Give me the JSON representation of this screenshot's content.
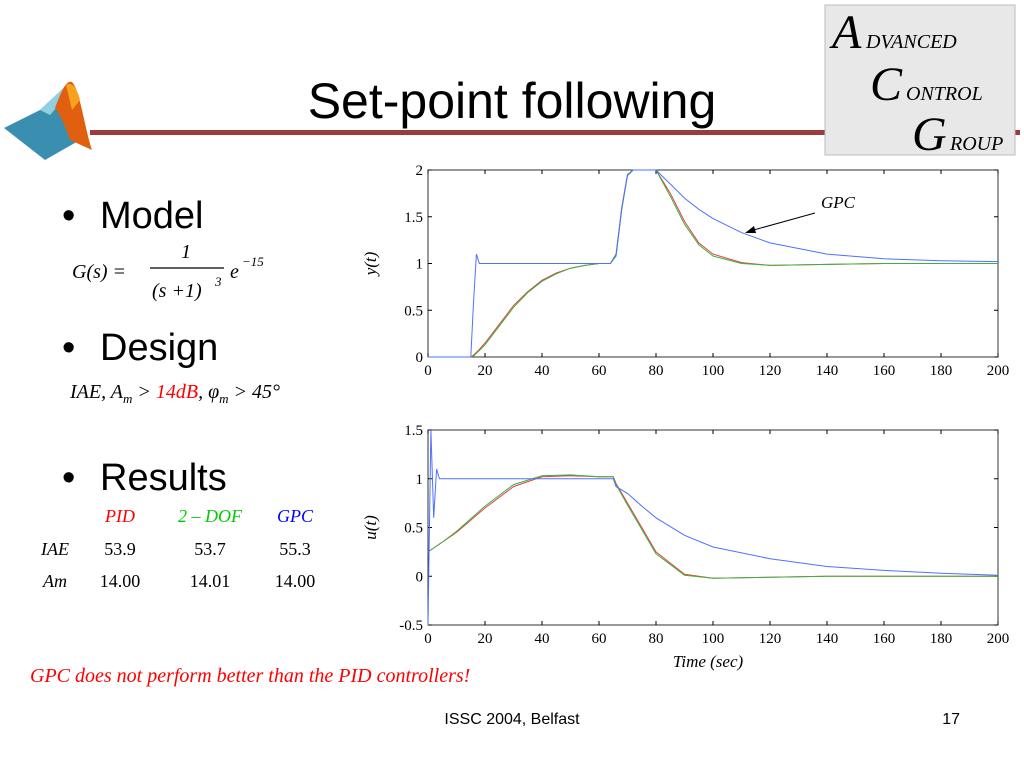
{
  "title": "Set-point following",
  "logo": [
    "A",
    "DVANCED",
    "C",
    "ONTROL",
    "G",
    "ROUP"
  ],
  "bullets": [
    "Model",
    "Design",
    "Results"
  ],
  "model_formula": {
    "lhs": "G(s) =",
    "numerator": "1",
    "denominator": "(s +1)",
    "denominator_power": "3",
    "factor": "e",
    "exponent": "−15"
  },
  "design_formula": {
    "part1": "IAE, A",
    "sub1": "m",
    "part2": " > ",
    "highlight": "14dB",
    "part3": ", φ",
    "sub2": "m",
    "part4": " > 45°"
  },
  "table": {
    "header": [
      "PID",
      "2 – DOF",
      "GPC"
    ],
    "header_colors": [
      "#ff0000",
      "#00cc00",
      "#0000ff"
    ],
    "rows": [
      [
        "IAE",
        "53.9",
        "53.7",
        "55.3"
      ],
      [
        "Am",
        "14.00",
        "14.01",
        "14.00"
      ]
    ]
  },
  "note": "GPC does not perform better than the PID controllers!",
  "footer": "ISSC 2004, Belfast",
  "page_number": "17",
  "chart_data": [
    {
      "type": "line",
      "ylabel": "y(t)",
      "annotation": "GPC",
      "x": [
        0,
        14,
        15,
        16,
        17,
        18,
        20,
        25,
        30,
        35,
        40,
        45,
        50,
        55,
        60,
        64,
        66,
        68,
        70,
        72,
        74,
        80,
        85,
        90,
        95,
        100,
        110,
        120,
        140,
        160,
        180,
        200
      ],
      "series": [
        {
          "name": "PID",
          "color": "#e04040",
          "values": [
            0,
            0,
            0,
            0.02,
            0.05,
            0.08,
            0.15,
            0.35,
            0.55,
            0.7,
            0.82,
            0.9,
            0.95,
            0.98,
            1,
            1,
            1.1,
            1.6,
            1.95,
            2,
            2,
            2,
            1.75,
            1.45,
            1.22,
            1.1,
            1.01,
            0.98,
            0.99,
            1,
            1,
            1
          ]
        },
        {
          "name": "2 – DOF",
          "color": "#40b040",
          "values": [
            0,
            0,
            0,
            0.01,
            0.04,
            0.07,
            0.13,
            0.33,
            0.53,
            0.69,
            0.81,
            0.89,
            0.95,
            0.98,
            1,
            1,
            1.08,
            1.58,
            1.94,
            2,
            2,
            2,
            1.72,
            1.42,
            1.2,
            1.08,
            1,
            0.98,
            0.99,
            1,
            1,
            1
          ]
        },
        {
          "name": "GPC",
          "color": "#5070ff",
          "values": [
            0,
            0,
            0,
            0.6,
            1.1,
            1,
            1,
            1,
            1,
            1,
            1,
            1,
            1,
            1,
            1,
            1,
            1.1,
            1.6,
            1.95,
            2,
            2,
            2,
            1.85,
            1.7,
            1.58,
            1.48,
            1.33,
            1.22,
            1.1,
            1.05,
            1.03,
            1.02
          ]
        }
      ],
      "xlim": [
        0,
        200
      ],
      "xticks": [
        0,
        20,
        40,
        60,
        80,
        100,
        120,
        140,
        160,
        180,
        200
      ],
      "ylim": [
        0,
        2
      ],
      "yticks": [
        0,
        0.5,
        1,
        1.5,
        2
      ],
      "grid": false
    },
    {
      "type": "line",
      "ylabel": "u(t)",
      "xlabel": "Time (sec)",
      "x": [
        0,
        1,
        2,
        3,
        4,
        5,
        10,
        20,
        30,
        40,
        50,
        60,
        65,
        66,
        70,
        75,
        80,
        90,
        100,
        120,
        140,
        160,
        180,
        200
      ],
      "series": [
        {
          "name": "PID",
          "color": "#e04040",
          "values": [
            0.25,
            0.27,
            0.29,
            0.31,
            0.33,
            0.35,
            0.45,
            0.7,
            0.92,
            1.02,
            1.03,
            1.02,
            1.02,
            0.95,
            0.75,
            0.5,
            0.25,
            0.02,
            -0.02,
            -0.01,
            0,
            0,
            0,
            0
          ]
        },
        {
          "name": "2 – DOF",
          "color": "#40b040",
          "values": [
            0.25,
            0.27,
            0.29,
            0.31,
            0.33,
            0.35,
            0.46,
            0.72,
            0.94,
            1.03,
            1.04,
            1.02,
            1.02,
            0.94,
            0.73,
            0.48,
            0.23,
            0.01,
            -0.02,
            -0.01,
            0,
            0,
            0,
            0
          ]
        },
        {
          "name": "GPC",
          "color": "#5070ff",
          "values": [
            -0.5,
            1.5,
            0.6,
            1.1,
            1,
            1,
            1,
            1,
            1,
            1,
            1,
            1,
            1,
            0.92,
            0.85,
            0.72,
            0.6,
            0.42,
            0.3,
            0.18,
            0.1,
            0.06,
            0.03,
            0.01
          ]
        }
      ],
      "xlim": [
        0,
        200
      ],
      "xticks": [
        0,
        20,
        40,
        60,
        80,
        100,
        120,
        140,
        160,
        180,
        200
      ],
      "ylim": [
        -0.5,
        1.5
      ],
      "yticks": [
        -0.5,
        0,
        0.5,
        1,
        1.5
      ],
      "grid": false
    }
  ]
}
